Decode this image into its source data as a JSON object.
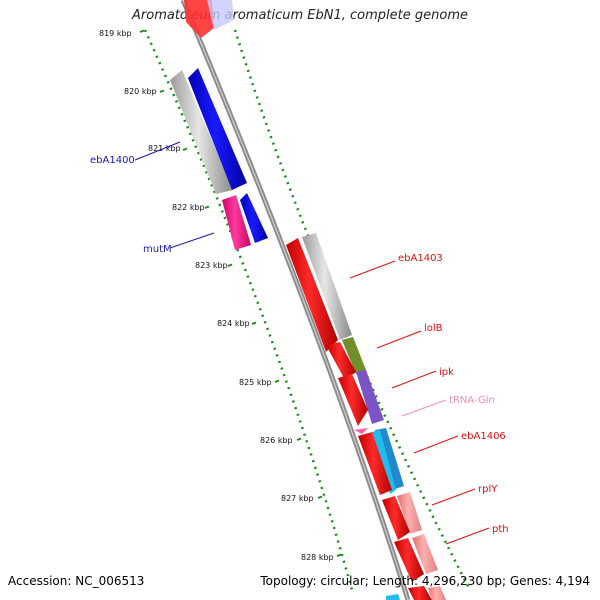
{
  "title": "Aromatoleum aromaticum EbN1, complete genome",
  "footer": {
    "accession": "Accession: NC_006513",
    "topology": "Topology: circular; Length: 4,296,230 bp; Genes: 4,194"
  },
  "ruler": [
    "819 kbp",
    "820 kbp",
    "821 kbp",
    "822 kbp",
    "823 kbp",
    "824 kbp",
    "825 kbp",
    "826 kbp",
    "827 kbp",
    "828 kbp"
  ],
  "genes_left": [
    {
      "name": "ebA1400",
      "color": "#1a1aaa"
    },
    {
      "name": "mutM",
      "color": "#1a1aaa"
    }
  ],
  "genes_right": [
    {
      "name": "ebA1403",
      "color": "#dd1111"
    },
    {
      "name": "lolB",
      "color": "#dd1111"
    },
    {
      "name": "ipk",
      "color": "#dd1111"
    },
    {
      "name": "tRNA-Gln",
      "color": "#f08cb8"
    },
    {
      "name": "ebA1406",
      "color": "#dd1111"
    },
    {
      "name": "rplY",
      "color": "#dd1111"
    },
    {
      "name": "pth",
      "color": "#dd1111"
    }
  ],
  "colors": {
    "forward_cds": "#ff0000",
    "reverse_cds": "#0000ff",
    "gene": "#bdbdbd",
    "trna": "#ff1493",
    "ruler_ticks": "#1b8a1b",
    "backbone": "#8c8c8c"
  }
}
